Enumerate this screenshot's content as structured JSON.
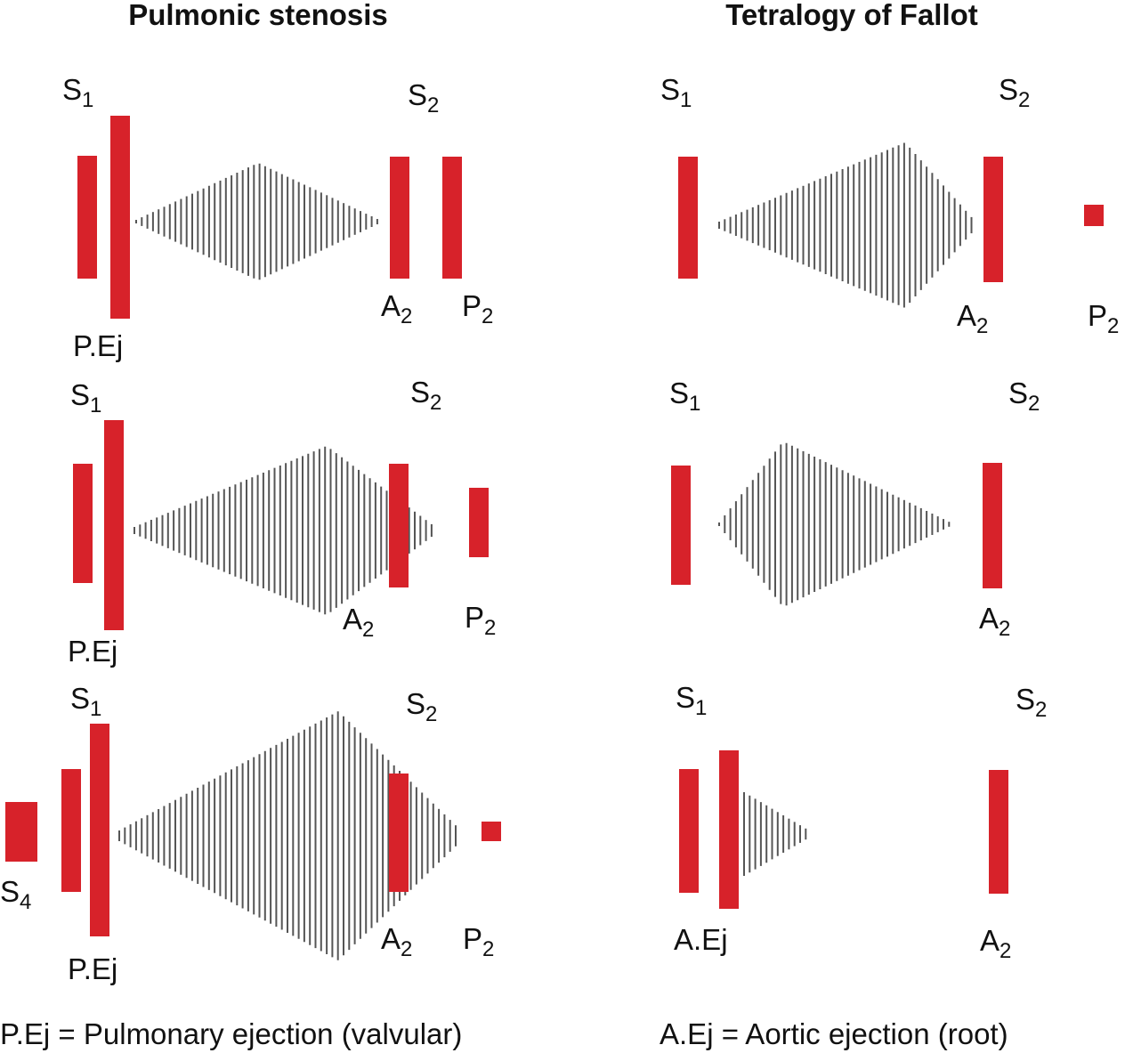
{
  "titles": {
    "left": "Pulmonic stenosis",
    "right": "Tetralogy of Fallot"
  },
  "footnotes": {
    "left": "P.Ej = Pulmonary ejection (valvular)",
    "right": "A.Ej = Aortic ejection (root)"
  },
  "colors": {
    "sound": "#d7222a",
    "murmur": "#555555",
    "text": "#111111"
  },
  "panels": [
    {
      "id": "ps-1",
      "labels": [
        {
          "base": "S",
          "sub": "1"
        },
        {
          "base": "S",
          "sub": "2"
        },
        {
          "base": "P.Ej",
          "sub": ""
        },
        {
          "base": "A",
          "sub": "2"
        },
        {
          "base": "P",
          "sub": "2"
        }
      ]
    },
    {
      "id": "ps-2",
      "labels": [
        {
          "base": "S",
          "sub": "1"
        },
        {
          "base": "S",
          "sub": "2"
        },
        {
          "base": "P.Ej",
          "sub": ""
        },
        {
          "base": "A",
          "sub": "2"
        },
        {
          "base": "P",
          "sub": "2"
        }
      ]
    },
    {
      "id": "ps-3",
      "labels": [
        {
          "base": "S",
          "sub": "1"
        },
        {
          "base": "S",
          "sub": "2"
        },
        {
          "base": "S",
          "sub": "4"
        },
        {
          "base": "P.Ej",
          "sub": ""
        },
        {
          "base": "A",
          "sub": "2"
        },
        {
          "base": "P",
          "sub": "2"
        }
      ]
    },
    {
      "id": "tof-1",
      "labels": [
        {
          "base": "S",
          "sub": "1"
        },
        {
          "base": "S",
          "sub": "2"
        },
        {
          "base": "A",
          "sub": "2"
        },
        {
          "base": "P",
          "sub": "2"
        }
      ]
    },
    {
      "id": "tof-2",
      "labels": [
        {
          "base": "S",
          "sub": "1"
        },
        {
          "base": "S",
          "sub": "2"
        },
        {
          "base": "A",
          "sub": "2"
        }
      ]
    },
    {
      "id": "tof-3",
      "labels": [
        {
          "base": "S",
          "sub": "1"
        },
        {
          "base": "S",
          "sub": "2"
        },
        {
          "base": "A.Ej",
          "sub": ""
        },
        {
          "base": "A",
          "sub": "2"
        }
      ]
    }
  ]
}
